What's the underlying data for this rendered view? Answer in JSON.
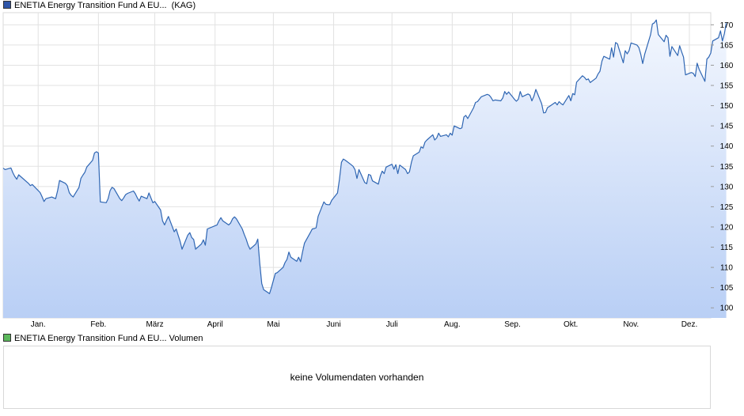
{
  "legend": {
    "price_label": "ENETIA Energy Transition Fund A EU...",
    "price_suffix": "(KAG)",
    "volume_label": "ENETIA Energy Transition Fund A EU... Volumen"
  },
  "volume_panel": {
    "message": "keine Volumendaten vorhanden"
  },
  "colors": {
    "line": "#2f66b3",
    "area_top": "#f3f7fe",
    "area_bottom": "#b9cff5",
    "grid": "#e2e2e2"
  },
  "chart_data": {
    "type": "area",
    "title": "",
    "xlabel": "",
    "ylabel": "",
    "ylim": [
      97.5,
      173
    ],
    "yticks": [
      100,
      105,
      110,
      115,
      120,
      125,
      130,
      135,
      140,
      145,
      150,
      155,
      160,
      165,
      170
    ],
    "x_range": [
      "2023-12-14",
      "2024-12-12"
    ],
    "month_labels": [
      {
        "label": "Jan.",
        "date": "2024-01-01"
      },
      {
        "label": "Feb.",
        "date": "2024-02-01"
      },
      {
        "label": "März",
        "date": "2024-03-01"
      },
      {
        "label": "April",
        "date": "2024-04-01"
      },
      {
        "label": "Mai",
        "date": "2024-05-01"
      },
      {
        "label": "Juni",
        "date": "2024-06-01"
      },
      {
        "label": "Juli",
        "date": "2024-07-01"
      },
      {
        "label": "Aug.",
        "date": "2024-08-01"
      },
      {
        "label": "Sep.",
        "date": "2024-09-01"
      },
      {
        "label": "Okt.",
        "date": "2024-10-01"
      },
      {
        "label": "Nov.",
        "date": "2024-11-01"
      },
      {
        "label": "Dez.",
        "date": "2024-12-01"
      }
    ],
    "grid": true,
    "series": [
      {
        "name": "",
        "points": [
          [
            "2023-12-14",
            134.5
          ],
          [
            "2023-12-15",
            134.2
          ],
          [
            "2023-12-18",
            134.6
          ],
          [
            "2023-12-19",
            133.4
          ],
          [
            "2023-12-20",
            132.5
          ],
          [
            "2023-12-21",
            131.8
          ],
          [
            "2023-12-22",
            132.9
          ],
          [
            "2023-12-27",
            130.8
          ],
          [
            "2023-12-28",
            130.2
          ],
          [
            "2023-12-29",
            130.5
          ],
          [
            "2024-01-02",
            128.5
          ],
          [
            "2024-01-03",
            127.5
          ],
          [
            "2024-01-04",
            126.3
          ],
          [
            "2024-01-05",
            127.0
          ],
          [
            "2024-01-08",
            127.4
          ],
          [
            "2024-01-09",
            127.2
          ],
          [
            "2024-01-10",
            127.0
          ],
          [
            "2024-01-11",
            129.0
          ],
          [
            "2024-01-12",
            131.5
          ],
          [
            "2024-01-15",
            130.8
          ],
          [
            "2024-01-16",
            130.2
          ],
          [
            "2024-01-17",
            128.5
          ],
          [
            "2024-01-18",
            127.8
          ],
          [
            "2024-01-19",
            127.4
          ],
          [
            "2024-01-22",
            129.8
          ],
          [
            "2024-01-23",
            132.0
          ],
          [
            "2024-01-24",
            132.8
          ],
          [
            "2024-01-25",
            133.5
          ],
          [
            "2024-01-26",
            134.8
          ],
          [
            "2024-01-29",
            136.5
          ],
          [
            "2024-01-30",
            138.3
          ],
          [
            "2024-01-31",
            138.6
          ],
          [
            "2024-02-01",
            138.3
          ],
          [
            "2024-02-02",
            126.2
          ],
          [
            "2024-02-05",
            126.0
          ],
          [
            "2024-02-06",
            127.0
          ],
          [
            "2024-02-07",
            129.0
          ],
          [
            "2024-02-08",
            129.8
          ],
          [
            "2024-02-09",
            129.5
          ],
          [
            "2024-02-12",
            127.0
          ],
          [
            "2024-02-13",
            126.5
          ],
          [
            "2024-02-14",
            127.2
          ],
          [
            "2024-02-15",
            128.0
          ],
          [
            "2024-02-16",
            128.3
          ],
          [
            "2024-02-19",
            128.9
          ],
          [
            "2024-02-20",
            128.2
          ],
          [
            "2024-02-21",
            127.2
          ],
          [
            "2024-02-22",
            126.4
          ],
          [
            "2024-02-23",
            127.6
          ],
          [
            "2024-02-26",
            127.0
          ],
          [
            "2024-02-27",
            128.4
          ],
          [
            "2024-02-28",
            127.2
          ],
          [
            "2024-02-29",
            126.0
          ],
          [
            "2024-03-01",
            126.3
          ],
          [
            "2024-03-04",
            124.2
          ],
          [
            "2024-03-05",
            121.5
          ],
          [
            "2024-03-06",
            120.5
          ],
          [
            "2024-03-07",
            121.6
          ],
          [
            "2024-03-08",
            122.6
          ],
          [
            "2024-03-11",
            118.8
          ],
          [
            "2024-03-12",
            119.5
          ],
          [
            "2024-03-13",
            118.0
          ],
          [
            "2024-03-14",
            116.5
          ],
          [
            "2024-03-15",
            114.5
          ],
          [
            "2024-03-18",
            118.0
          ],
          [
            "2024-03-19",
            118.6
          ],
          [
            "2024-03-20",
            117.4
          ],
          [
            "2024-03-21",
            116.9
          ],
          [
            "2024-03-22",
            114.5
          ],
          [
            "2024-03-25",
            115.8
          ],
          [
            "2024-03-26",
            116.8
          ],
          [
            "2024-03-27",
            115.5
          ],
          [
            "2024-03-28",
            119.5
          ],
          [
            "2024-04-02",
            120.5
          ],
          [
            "2024-04-03",
            121.5
          ],
          [
            "2024-04-04",
            122.3
          ],
          [
            "2024-04-05",
            121.5
          ],
          [
            "2024-04-08",
            120.5
          ],
          [
            "2024-04-09",
            121.0
          ],
          [
            "2024-04-10",
            122.0
          ],
          [
            "2024-04-11",
            122.5
          ],
          [
            "2024-04-12",
            122.0
          ],
          [
            "2024-04-15",
            119.5
          ],
          [
            "2024-04-16",
            118.2
          ],
          [
            "2024-04-17",
            117.0
          ],
          [
            "2024-04-18",
            115.5
          ],
          [
            "2024-04-19",
            114.5
          ],
          [
            "2024-04-22",
            115.8
          ],
          [
            "2024-04-23",
            117.0
          ],
          [
            "2024-04-24",
            111.0
          ],
          [
            "2024-04-25",
            106.0
          ],
          [
            "2024-04-26",
            104.5
          ],
          [
            "2024-04-29",
            103.5
          ],
          [
            "2024-04-30",
            105.0
          ],
          [
            "2024-05-02",
            108.5
          ],
          [
            "2024-05-03",
            108.7
          ],
          [
            "2024-05-06",
            110.0
          ],
          [
            "2024-05-07",
            111.2
          ],
          [
            "2024-05-08",
            112.0
          ],
          [
            "2024-05-09",
            113.8
          ],
          [
            "2024-05-10",
            112.5
          ],
          [
            "2024-05-13",
            111.5
          ],
          [
            "2024-05-14",
            112.5
          ],
          [
            "2024-05-15",
            111.4
          ],
          [
            "2024-05-16",
            113.8
          ],
          [
            "2024-05-17",
            116.0
          ],
          [
            "2024-05-20",
            118.6
          ],
          [
            "2024-05-21",
            119.5
          ],
          [
            "2024-05-22",
            119.6
          ],
          [
            "2024-05-23",
            119.8
          ],
          [
            "2024-05-24",
            122.6
          ],
          [
            "2024-05-27",
            126.2
          ],
          [
            "2024-05-28",
            125.6
          ],
          [
            "2024-05-29",
            125.5
          ],
          [
            "2024-05-30",
            125.5
          ],
          [
            "2024-05-31",
            126.6
          ],
          [
            "2024-06-03",
            128.4
          ],
          [
            "2024-06-04",
            131.8
          ],
          [
            "2024-06-05",
            136.0
          ],
          [
            "2024-06-06",
            136.8
          ],
          [
            "2024-06-07",
            136.5
          ],
          [
            "2024-06-10",
            135.4
          ],
          [
            "2024-06-11",
            135.0
          ],
          [
            "2024-06-12",
            134.2
          ],
          [
            "2024-06-13",
            132.0
          ],
          [
            "2024-06-14",
            134.2
          ],
          [
            "2024-06-17",
            131.0
          ],
          [
            "2024-06-18",
            130.7
          ],
          [
            "2024-06-19",
            133.0
          ],
          [
            "2024-06-20",
            132.8
          ],
          [
            "2024-06-21",
            131.4
          ],
          [
            "2024-06-24",
            130.6
          ],
          [
            "2024-06-25",
            132.6
          ],
          [
            "2024-06-26",
            133.8
          ],
          [
            "2024-06-27",
            133.2
          ],
          [
            "2024-06-28",
            134.8
          ],
          [
            "2024-07-01",
            135.5
          ],
          [
            "2024-07-02",
            134.3
          ],
          [
            "2024-07-03",
            135.4
          ],
          [
            "2024-07-04",
            133.2
          ],
          [
            "2024-07-05",
            135.3
          ],
          [
            "2024-07-08",
            134.2
          ],
          [
            "2024-07-09",
            133.2
          ],
          [
            "2024-07-10",
            133.6
          ],
          [
            "2024-07-11",
            136.0
          ],
          [
            "2024-07-12",
            137.6
          ],
          [
            "2024-07-15",
            138.5
          ],
          [
            "2024-07-16",
            139.8
          ],
          [
            "2024-07-17",
            139.5
          ],
          [
            "2024-07-18",
            141.0
          ],
          [
            "2024-07-19",
            141.5
          ],
          [
            "2024-07-22",
            142.8
          ],
          [
            "2024-07-23",
            141.5
          ],
          [
            "2024-07-24",
            142.0
          ],
          [
            "2024-07-25",
            143.2
          ],
          [
            "2024-07-26",
            142.4
          ],
          [
            "2024-07-29",
            142.8
          ],
          [
            "2024-07-30",
            142.3
          ],
          [
            "2024-07-31",
            143.2
          ],
          [
            "2024-08-01",
            142.7
          ],
          [
            "2024-08-02",
            145.0
          ],
          [
            "2024-08-05",
            144.3
          ],
          [
            "2024-08-06",
            144.5
          ],
          [
            "2024-08-07",
            147.2
          ],
          [
            "2024-08-08",
            147.6
          ],
          [
            "2024-08-09",
            146.8
          ],
          [
            "2024-08-12",
            149.5
          ],
          [
            "2024-08-13",
            150.8
          ],
          [
            "2024-08-14",
            151.0
          ],
          [
            "2024-08-15",
            151.6
          ],
          [
            "2024-08-16",
            152.2
          ],
          [
            "2024-08-19",
            152.8
          ],
          [
            "2024-08-20",
            152.6
          ],
          [
            "2024-08-21",
            152.0
          ],
          [
            "2024-08-22",
            151.2
          ],
          [
            "2024-08-23",
            151.4
          ],
          [
            "2024-08-26",
            151.2
          ],
          [
            "2024-08-27",
            151.9
          ],
          [
            "2024-08-28",
            153.5
          ],
          [
            "2024-08-29",
            152.8
          ],
          [
            "2024-08-30",
            153.4
          ],
          [
            "2024-09-02",
            151.6
          ],
          [
            "2024-09-03",
            151.1
          ],
          [
            "2024-09-04",
            151.6
          ],
          [
            "2024-09-05",
            153.5
          ],
          [
            "2024-09-06",
            152.2
          ],
          [
            "2024-09-09",
            152.9
          ],
          [
            "2024-09-10",
            152.6
          ],
          [
            "2024-09-11",
            151.2
          ],
          [
            "2024-09-12",
            152.3
          ],
          [
            "2024-09-13",
            154.0
          ],
          [
            "2024-09-16",
            150.5
          ],
          [
            "2024-09-17",
            148.2
          ],
          [
            "2024-09-18",
            148.3
          ],
          [
            "2024-09-19",
            149.5
          ],
          [
            "2024-09-20",
            149.8
          ],
          [
            "2024-09-23",
            150.8
          ],
          [
            "2024-09-24",
            150.2
          ],
          [
            "2024-09-25",
            151.0
          ],
          [
            "2024-09-26",
            150.5
          ],
          [
            "2024-09-27",
            150.2
          ],
          [
            "2024-09-30",
            152.5
          ],
          [
            "2024-10-01",
            151.2
          ],
          [
            "2024-10-02",
            153.0
          ],
          [
            "2024-10-03",
            152.7
          ],
          [
            "2024-10-04",
            155.8
          ],
          [
            "2024-10-07",
            157.4
          ],
          [
            "2024-10-08",
            157.0
          ],
          [
            "2024-10-09",
            156.4
          ],
          [
            "2024-10-10",
            156.6
          ],
          [
            "2024-10-11",
            155.7
          ],
          [
            "2024-10-14",
            156.8
          ],
          [
            "2024-10-15",
            157.8
          ],
          [
            "2024-10-16",
            158.5
          ],
          [
            "2024-10-17",
            161.0
          ],
          [
            "2024-10-18",
            162.2
          ],
          [
            "2024-10-21",
            161.5
          ],
          [
            "2024-10-22",
            164.3
          ],
          [
            "2024-10-23",
            162.0
          ],
          [
            "2024-10-24",
            165.6
          ],
          [
            "2024-10-25",
            165.3
          ],
          [
            "2024-10-28",
            160.6
          ],
          [
            "2024-10-29",
            163.6
          ],
          [
            "2024-10-30",
            162.8
          ],
          [
            "2024-10-31",
            163.6
          ],
          [
            "2024-11-01",
            165.5
          ],
          [
            "2024-11-04",
            165.0
          ],
          [
            "2024-11-05",
            164.4
          ],
          [
            "2024-11-06",
            162.7
          ],
          [
            "2024-11-07",
            160.4
          ],
          [
            "2024-11-08",
            162.7
          ],
          [
            "2024-11-11",
            167.5
          ],
          [
            "2024-11-12",
            170.2
          ],
          [
            "2024-11-13",
            170.5
          ],
          [
            "2024-11-14",
            171.2
          ],
          [
            "2024-11-15",
            167.6
          ],
          [
            "2024-11-18",
            165.8
          ],
          [
            "2024-11-19",
            167.4
          ],
          [
            "2024-11-20",
            166.8
          ],
          [
            "2024-11-21",
            162.2
          ],
          [
            "2024-11-22",
            164.6
          ],
          [
            "2024-11-25",
            162.4
          ],
          [
            "2024-11-26",
            164.8
          ],
          [
            "2024-11-27",
            163.3
          ],
          [
            "2024-11-28",
            162.0
          ],
          [
            "2024-11-29",
            157.6
          ],
          [
            "2024-12-02",
            158.2
          ],
          [
            "2024-12-03",
            158.0
          ],
          [
            "2024-12-04",
            157.2
          ],
          [
            "2024-12-05",
            160.5
          ],
          [
            "2024-12-06",
            159.0
          ],
          [
            "2024-12-09",
            156.0
          ],
          [
            "2024-12-10",
            161.5
          ],
          [
            "2024-12-11",
            162.0
          ],
          [
            "2024-12-12",
            163.0
          ],
          [
            "2024-12-13",
            166.0
          ],
          [
            "2024-12-16",
            166.8
          ],
          [
            "2024-12-17",
            168.5
          ],
          [
            "2024-12-18",
            166.0
          ],
          [
            "2024-12-19",
            167.8
          ],
          [
            "2024-12-20",
            170.5
          ]
        ]
      }
    ]
  }
}
